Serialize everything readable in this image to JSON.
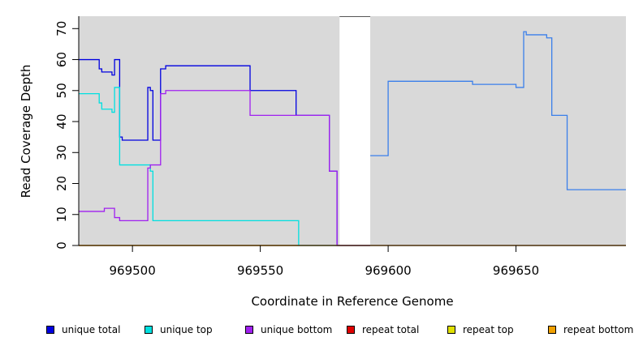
{
  "chart_data": {
    "type": "line",
    "title": "",
    "xlabel": "Coordinate in Reference Genome",
    "ylabel": "Read Coverage Depth",
    "xlim": [
      969479,
      969693
    ],
    "ylim": [
      0,
      74
    ],
    "x_ticks": [
      969500,
      969550,
      969600,
      969650
    ],
    "x_tick_labels": [
      "969500",
      "969550",
      "969600",
      "969650"
    ],
    "y_ticks": [
      0,
      10,
      20,
      30,
      40,
      50,
      60,
      70
    ],
    "y_tick_labels": [
      "0",
      "10",
      "20",
      "30",
      "40",
      "50",
      "60",
      "70"
    ],
    "grid": false,
    "background_color": "#d9d9d9",
    "gap_region": [
      969581,
      969593
    ],
    "legend_position": "bottom",
    "series": [
      {
        "name": "unique total",
        "color": "#0000e0",
        "step": true,
        "points": [
          [
            969479,
            60
          ],
          [
            969486,
            60
          ],
          [
            969487,
            57
          ],
          [
            969488,
            56
          ],
          [
            969492,
            55
          ],
          [
            969493,
            60
          ],
          [
            969495,
            35
          ],
          [
            969496,
            34
          ],
          [
            969506,
            51
          ],
          [
            969507,
            50
          ],
          [
            969508,
            34
          ],
          [
            969511,
            57
          ],
          [
            969513,
            58
          ],
          [
            969546,
            50
          ],
          [
            969564,
            42
          ],
          [
            969577,
            24
          ],
          [
            969580,
            0
          ],
          [
            969593,
            0
          ]
        ]
      },
      {
        "name": "unique top",
        "color": "#00e0e0",
        "step": true,
        "points": [
          [
            969479,
            49
          ],
          [
            969486,
            49
          ],
          [
            969487,
            46
          ],
          [
            969488,
            44
          ],
          [
            969492,
            43
          ],
          [
            969493,
            51
          ],
          [
            969495,
            26
          ],
          [
            969507,
            24
          ],
          [
            969508,
            8
          ],
          [
            969564,
            8
          ],
          [
            969565,
            0
          ],
          [
            969580,
            0
          ]
        ]
      },
      {
        "name": "unique bottom",
        "color": "#a020f0",
        "step": true,
        "points": [
          [
            969479,
            11
          ],
          [
            969488,
            11
          ],
          [
            969489,
            12
          ],
          [
            969492,
            12
          ],
          [
            969493,
            9
          ],
          [
            969495,
            8
          ],
          [
            969506,
            25
          ],
          [
            969507,
            26
          ],
          [
            969511,
            49
          ],
          [
            969513,
            50
          ],
          [
            969546,
            42
          ],
          [
            969564,
            42
          ],
          [
            969577,
            24
          ],
          [
            969580,
            0
          ],
          [
            969593,
            0
          ]
        ]
      },
      {
        "name": "repeat total",
        "color": "#e00000",
        "step": true,
        "points": [
          [
            969479,
            0
          ],
          [
            969693,
            0
          ]
        ]
      },
      {
        "name": "repeat top",
        "color": "#e0e000",
        "step": true,
        "points": [
          [
            969479,
            0
          ],
          [
            969693,
            0
          ]
        ]
      },
      {
        "name": "repeat bottom",
        "color": "#f0a000",
        "step": true,
        "points": [
          [
            969479,
            0
          ],
          [
            969565,
            0
          ]
        ]
      },
      {
        "name": "",
        "color": "#3a7fea",
        "step": true,
        "points": [
          [
            969593,
            29
          ],
          [
            969599,
            29
          ],
          [
            969600,
            53
          ],
          [
            969632,
            53
          ],
          [
            969633,
            52
          ],
          [
            969649,
            52
          ],
          [
            969650,
            51
          ],
          [
            969652,
            51
          ],
          [
            969653,
            69
          ],
          [
            969654,
            68
          ],
          [
            969662,
            67
          ],
          [
            969664,
            42
          ],
          [
            969669,
            42
          ],
          [
            969670,
            18
          ],
          [
            969693,
            18
          ]
        ]
      }
    ]
  }
}
